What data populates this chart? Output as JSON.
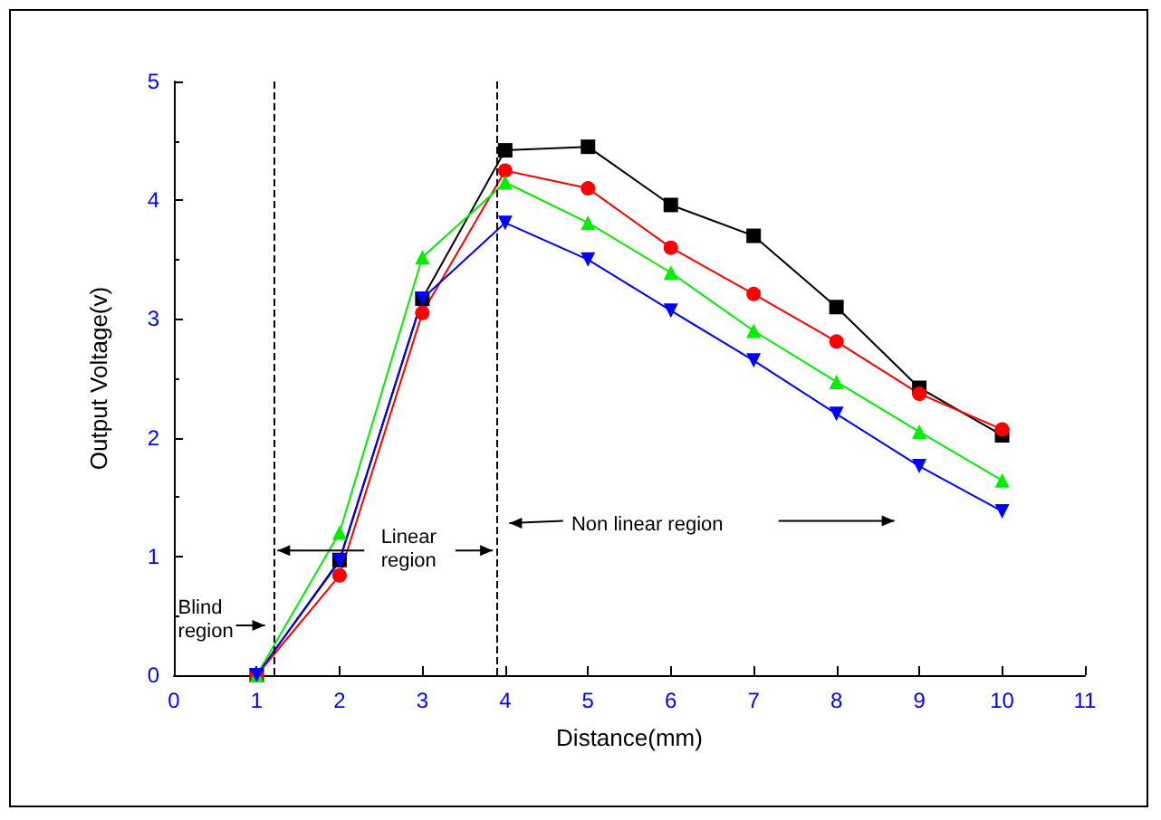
{
  "chart_data": {
    "type": "line",
    "xlabel": "Distance(mm)",
    "ylabel": "Output Voltage(v)",
    "x": [
      1,
      2,
      3,
      4,
      5,
      6,
      7,
      8,
      9,
      10
    ],
    "series": [
      {
        "color": "#000000",
        "marker": "square",
        "values": [
          0,
          0.97,
          3.17,
          4.42,
          4.45,
          3.96,
          3.7,
          3.1,
          2.42,
          2.02
        ]
      },
      {
        "color": "#ff0000",
        "marker": "circle",
        "values": [
          0,
          0.84,
          3.05,
          4.25,
          4.1,
          3.6,
          3.21,
          2.81,
          2.37,
          2.07
        ]
      },
      {
        "color": "#00ee00",
        "marker": "triangle",
        "values": [
          0,
          1.2,
          3.52,
          4.15,
          3.81,
          3.39,
          2.9,
          2.47,
          2.05,
          1.64
        ]
      },
      {
        "color": "#0000ff",
        "marker": "triangle-down",
        "values": [
          0,
          0.96,
          3.17,
          3.81,
          3.5,
          3.07,
          2.65,
          2.2,
          1.76,
          1.38
        ]
      }
    ],
    "xlim": [
      0,
      11
    ],
    "xticks": [
      0,
      1,
      2,
      3,
      4,
      5,
      6,
      7,
      8,
      9,
      10,
      11
    ],
    "ylim": [
      0,
      5
    ],
    "yticks": [
      0,
      1,
      2,
      3,
      4,
      5
    ],
    "ref_lines": [
      {
        "axis": "x",
        "value": 1.2,
        "line_style": "dashed",
        "color": "#000000"
      },
      {
        "axis": "x",
        "value": 3.9,
        "line_style": "dashed",
        "color": "#000000"
      }
    ],
    "annotations": [
      "Blind region",
      "Linear region",
      "Non linear region"
    ],
    "line_style": "solid"
  }
}
